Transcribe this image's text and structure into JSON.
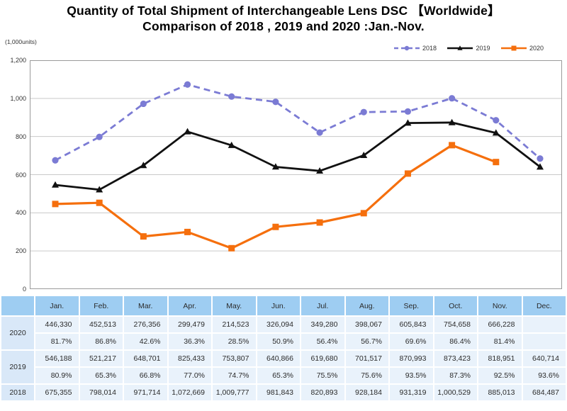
{
  "title": {
    "line1": "Quantity of Total Shipment of Interchangeable Lens DSC 【Worldwide】",
    "line2": "Comparison of 2018 , 2019 and 2020 :Jan.-Nov."
  },
  "chart_data": {
    "type": "line",
    "title": "Quantity of Total Shipment of Interchangeable Lens DSC 【Worldwide】 Comparison of 2018 , 2019 and 2020 :Jan.-Nov.",
    "ylabel": "(1,000units)",
    "xlabel": "",
    "categories": [
      "Jan.",
      "Feb.",
      "Mar.",
      "Apr.",
      "May.",
      "Jun.",
      "Jul.",
      "Aug.",
      "Sep.",
      "Oct.",
      "Nov.",
      "Dec."
    ],
    "ylim": [
      0,
      1200
    ],
    "y_tick_step": 200,
    "y_tick_labels": [
      "0",
      "200",
      "400",
      "600",
      "800",
      "1,000",
      "1,200"
    ],
    "grid": true,
    "legend_position": "top-right",
    "series": [
      {
        "name": "2018",
        "color": "#7b7bd4",
        "line_style": "dashed",
        "marker": "circle",
        "values": [
          675.355,
          798.014,
          971.714,
          1072.669,
          1009.777,
          981.843,
          820.893,
          928.184,
          931.319,
          1000.529,
          885.013,
          684.487
        ]
      },
      {
        "name": "2019",
        "color": "#111111",
        "line_style": "solid",
        "marker": "triangle",
        "values": [
          546.188,
          521.217,
          648.701,
          825.433,
          753.807,
          640.866,
          619.68,
          701.517,
          870.993,
          873.423,
          818.951,
          640.714
        ]
      },
      {
        "name": "2020",
        "color": "#f56f0d",
        "line_style": "solid",
        "marker": "square",
        "values": [
          446.33,
          452.513,
          276.356,
          299.479,
          214.523,
          326.094,
          349.28,
          398.067,
          605.843,
          754.658,
          666.228,
          null
        ]
      }
    ]
  },
  "table": {
    "month_headers": [
      "Jan.",
      "Feb.",
      "Mar.",
      "Apr.",
      "May.",
      "Jun.",
      "Jul.",
      "Aug.",
      "Sep.",
      "Oct.",
      "Nov.",
      "Dec."
    ],
    "row_groups": [
      {
        "year": "2020",
        "values": [
          "446,330",
          "452,513",
          "276,356",
          "299,479",
          "214,523",
          "326,094",
          "349,280",
          "398,067",
          "605,843",
          "754,658",
          "666,228",
          ""
        ],
        "percentages": [
          "81.7%",
          "86.8%",
          "42.6%",
          "36.3%",
          "28.5%",
          "50.9%",
          "56.4%",
          "56.7%",
          "69.6%",
          "86.4%",
          "81.4%",
          ""
        ]
      },
      {
        "year": "2019",
        "values": [
          "546,188",
          "521,217",
          "648,701",
          "825,433",
          "753,807",
          "640,866",
          "619,680",
          "701,517",
          "870,993",
          "873,423",
          "818,951",
          "640,714"
        ],
        "percentages": [
          "80.9%",
          "65.3%",
          "66.8%",
          "77.0%",
          "74.7%",
          "65.3%",
          "75.5%",
          "75.6%",
          "93.5%",
          "87.3%",
          "92.5%",
          "93.6%"
        ]
      },
      {
        "year": "2018",
        "values": [
          "675,355",
          "798,014",
          "971,714",
          "1,072,669",
          "1,009,777",
          "981,843",
          "820,893",
          "928,184",
          "931,319",
          "1,000,529",
          "885,013",
          "684,487"
        ],
        "percentages": null
      }
    ]
  },
  "colors": {
    "series_2018": "#7b7bd4",
    "series_2019": "#111111",
    "series_2020": "#f56f0d",
    "gridline": "#c9c9c9",
    "plot_border": "#9a9a9a",
    "table_header_bg": "#9ecdf2",
    "table_year_bg": "#d9e8f8",
    "table_cell_bg": "#e9f2fb"
  }
}
